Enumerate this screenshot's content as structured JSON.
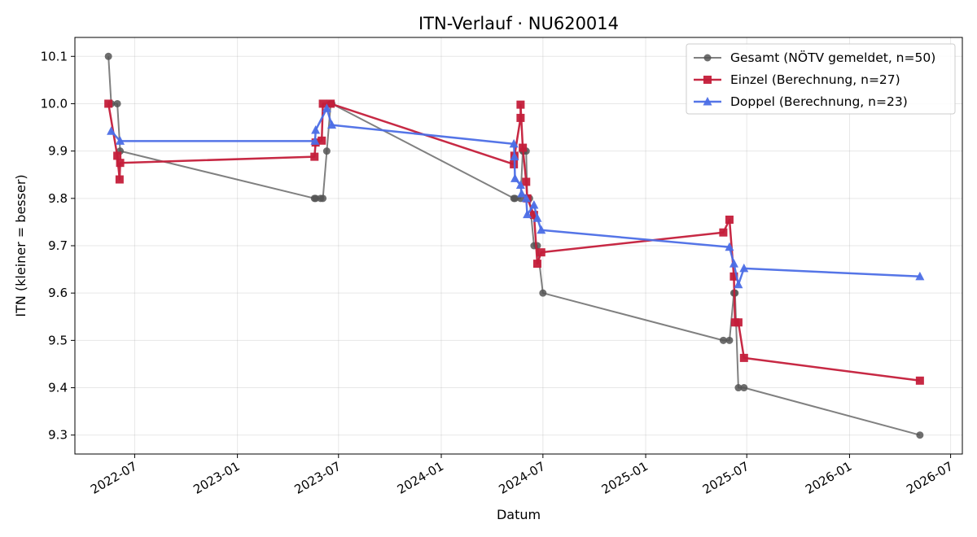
{
  "chart_data": {
    "type": "line",
    "title": "ITN-Verlauf · NU620014",
    "xlabel": "Datum",
    "ylabel": "ITN  (kleiner = besser)",
    "x_is_date": true,
    "xlim": [
      "2022-03-16",
      "2026-07-22"
    ],
    "ylim": [
      9.26,
      10.14
    ],
    "xticks": [
      "2022-07-01",
      "2023-01-01",
      "2023-07-01",
      "2024-01-01",
      "2024-07-01",
      "2025-01-01",
      "2025-07-01",
      "2026-01-01",
      "2026-07-01"
    ],
    "xtick_labels": [
      "2022-07",
      "2023-01",
      "2023-07",
      "2024-01",
      "2024-07",
      "2025-01",
      "2025-07",
      "2026-01",
      "2026-07"
    ],
    "yticks": [
      9.3,
      9.4,
      9.5,
      9.6,
      9.7,
      9.8,
      9.9,
      10.0,
      10.1
    ],
    "ytick_labels": [
      "9.3",
      "9.4",
      "9.5",
      "9.6",
      "9.7",
      "9.8",
      "9.9",
      "10.0",
      "10.1"
    ],
    "grid": true,
    "legend_position": "top-right",
    "series": [
      {
        "name": "Gesamt (NÖTV gemeldet, n=50)",
        "color": "#555555",
        "marker": "circle",
        "points": [
          [
            "2022-05-15",
            10.1
          ],
          [
            "2022-05-20",
            10.0
          ],
          [
            "2022-05-31",
            10.0
          ],
          [
            "2022-06-05",
            9.9
          ],
          [
            "2023-05-19",
            9.8
          ],
          [
            "2023-05-21",
            9.8
          ],
          [
            "2023-05-30",
            9.8
          ],
          [
            "2023-06-03",
            9.8
          ],
          [
            "2023-06-10",
            9.9
          ],
          [
            "2023-06-17",
            10.0
          ],
          [
            "2023-06-19",
            10.0
          ],
          [
            "2024-05-10",
            9.8
          ],
          [
            "2024-05-12",
            9.8
          ],
          [
            "2024-05-22",
            9.8
          ],
          [
            "2024-05-26",
            9.9
          ],
          [
            "2024-05-28",
            9.9
          ],
          [
            "2024-06-01",
            9.9
          ],
          [
            "2024-06-03",
            9.8
          ],
          [
            "2024-06-07",
            9.8
          ],
          [
            "2024-06-15",
            9.7
          ],
          [
            "2024-06-21",
            9.7
          ],
          [
            "2024-07-01",
            9.6
          ],
          [
            "2025-05-20",
            9.5
          ],
          [
            "2025-05-31",
            9.5
          ],
          [
            "2025-06-08",
            9.6
          ],
          [
            "2025-06-10",
            9.6
          ],
          [
            "2025-06-16",
            9.4
          ],
          [
            "2025-06-26",
            9.4
          ],
          [
            "2026-05-07",
            9.3
          ]
        ]
      },
      {
        "name": "Einzel (Berechnung, n=27)",
        "color": "#c41e3a",
        "marker": "square",
        "points": [
          [
            "2022-05-15",
            10.0
          ],
          [
            "2022-05-31",
            9.89
          ],
          [
            "2022-06-04",
            9.84
          ],
          [
            "2022-06-05",
            9.875
          ],
          [
            "2023-05-19",
            9.888
          ],
          [
            "2023-05-21",
            9.918
          ],
          [
            "2023-06-01",
            9.922
          ],
          [
            "2023-06-03",
            10.0
          ],
          [
            "2023-06-17",
            10.0
          ],
          [
            "2024-05-10",
            9.872
          ],
          [
            "2024-05-11",
            9.89
          ],
          [
            "2024-05-22",
            9.97
          ],
          [
            "2024-05-22",
            9.998
          ],
          [
            "2024-05-26",
            9.907
          ],
          [
            "2024-06-01",
            9.835
          ],
          [
            "2024-06-03",
            9.8
          ],
          [
            "2024-06-15",
            9.765
          ],
          [
            "2024-06-21",
            9.662
          ],
          [
            "2024-06-28",
            9.686
          ],
          [
            "2025-05-20",
            9.728
          ],
          [
            "2025-05-31",
            9.755
          ],
          [
            "2025-06-08",
            9.635
          ],
          [
            "2025-06-10",
            9.538
          ],
          [
            "2025-06-16",
            9.538
          ],
          [
            "2025-06-26",
            9.463
          ],
          [
            "2026-05-07",
            9.415
          ]
        ]
      },
      {
        "name": "Doppel (Berechnung, n=23)",
        "color": "#4c6ee6",
        "marker": "triangle",
        "points": [
          [
            "2022-05-20",
            9.942
          ],
          [
            "2022-06-05",
            9.921
          ],
          [
            "2023-05-20",
            9.921
          ],
          [
            "2023-05-21",
            9.944
          ],
          [
            "2023-06-10",
            9.99
          ],
          [
            "2023-06-19",
            9.955
          ],
          [
            "2024-05-10",
            9.915
          ],
          [
            "2024-05-11",
            9.888
          ],
          [
            "2024-05-12",
            9.842
          ],
          [
            "2024-05-22",
            9.828
          ],
          [
            "2024-05-24",
            9.81
          ],
          [
            "2024-06-01",
            9.8
          ],
          [
            "2024-06-03",
            9.766
          ],
          [
            "2024-06-15",
            9.786
          ],
          [
            "2024-06-21",
            9.758
          ],
          [
            "2024-06-28",
            9.733
          ],
          [
            "2025-05-31",
            9.697
          ],
          [
            "2025-06-08",
            9.662
          ],
          [
            "2025-06-16",
            9.618
          ],
          [
            "2025-06-26",
            9.652
          ],
          [
            "2026-05-07",
            9.635
          ]
        ]
      }
    ]
  }
}
